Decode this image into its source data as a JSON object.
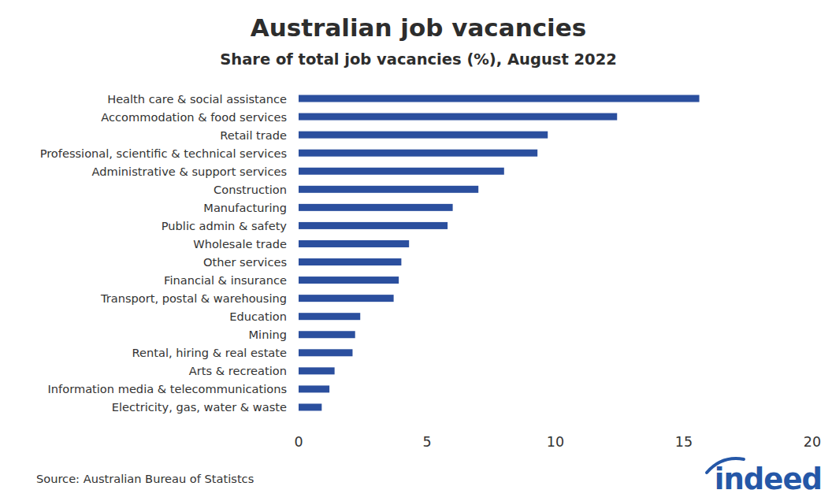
{
  "chart_data": {
    "type": "bar",
    "orientation": "horizontal",
    "title": "Australian job vacancies",
    "subtitle": "Share of total job vacancies (%), August 2022",
    "source": "Source: Australian Bureau of Statistcs",
    "logo": "indeed",
    "categories": [
      "Health care & social assistance",
      "Accommodation & food services",
      "Retail trade",
      "Professional, scientific & technical services",
      "Administrative & support services",
      "Construction",
      "Manufacturing",
      "Public admin & safety",
      "Wholesale trade",
      "Other services",
      "Financial & insurance",
      "Transport, postal & warehousing",
      "Education",
      "Mining",
      "Rental, hiring & real estate",
      "Arts & recreation",
      "Information media & telecommunications",
      "Electricity, gas, water & waste"
    ],
    "values": [
      15.6,
      12.4,
      9.7,
      9.3,
      8.0,
      7.0,
      6.0,
      5.8,
      4.3,
      4.0,
      3.9,
      3.7,
      2.4,
      2.2,
      2.1,
      1.4,
      1.2,
      0.9
    ],
    "color": "#2b4f9e",
    "xlim": [
      0,
      20
    ],
    "xticks": [
      0,
      5,
      10,
      15,
      20
    ],
    "grid": false
  }
}
